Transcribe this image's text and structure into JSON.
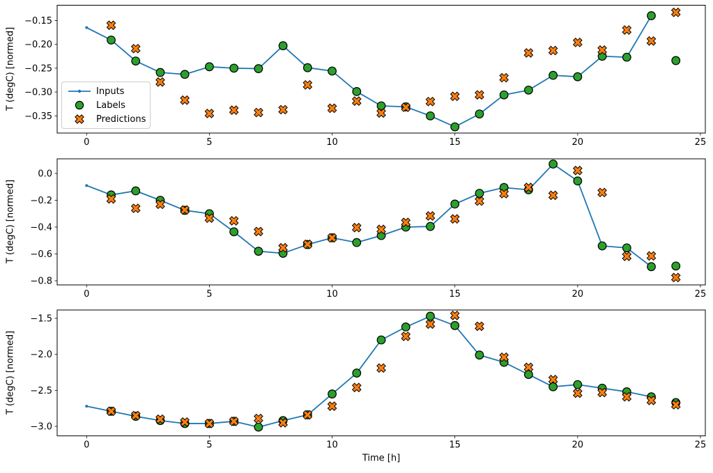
{
  "figure": {
    "xlabel": "Time [h]",
    "ylabel": "T (degC) [normed]",
    "legend": {
      "position": "center-left-of-first-subplot"
    },
    "colors": {
      "inputs": "#1f77b4",
      "labels": "#2ca02c",
      "predictions": "#ff7f0e",
      "marker_edge": "#000000"
    }
  },
  "chart_data": [
    {
      "type": "line",
      "subplot": 1,
      "ylabel": "T (degC) [normed]",
      "xlabel": "",
      "xlim": [
        -1.2,
        25.2
      ],
      "ylim": [
        -0.386,
        -0.118
      ],
      "xticks": [
        0,
        5,
        10,
        15,
        20,
        25
      ],
      "xtick_labels": [
        "0",
        "5",
        "10",
        "15",
        "20",
        "25"
      ],
      "yticks": [
        -0.15,
        -0.2,
        -0.25,
        -0.3,
        -0.35
      ],
      "ytick_labels": [
        "−0.15",
        "−0.20",
        "−0.25",
        "−0.30",
        "−0.35"
      ],
      "grid": false,
      "show_legend": true,
      "series": [
        {
          "name": "Inputs",
          "kind": "line",
          "marker": "dot",
          "color": "#1f77b4",
          "x": [
            0,
            1,
            2,
            3,
            4,
            5,
            6,
            7,
            8,
            9,
            10,
            11,
            12,
            13,
            14,
            15,
            16,
            17,
            18,
            19,
            20,
            21,
            22,
            23
          ],
          "y": [
            -0.165,
            -0.191,
            -0.235,
            -0.259,
            -0.263,
            -0.247,
            -0.25,
            -0.251,
            -0.203,
            -0.249,
            -0.256,
            -0.299,
            -0.329,
            -0.331,
            -0.35,
            -0.373,
            -0.346,
            -0.306,
            -0.296,
            -0.265,
            -0.268,
            -0.225,
            -0.227,
            -0.14
          ]
        },
        {
          "name": "Labels",
          "kind": "scatter",
          "marker": "circle",
          "color": "#2ca02c",
          "edge": "#000000",
          "x": [
            1,
            2,
            3,
            4,
            5,
            6,
            7,
            8,
            9,
            10,
            11,
            12,
            13,
            14,
            15,
            16,
            17,
            18,
            19,
            20,
            21,
            22,
            23,
            24
          ],
          "y": [
            -0.191,
            -0.235,
            -0.259,
            -0.263,
            -0.247,
            -0.25,
            -0.251,
            -0.203,
            -0.249,
            -0.256,
            -0.299,
            -0.329,
            -0.331,
            -0.35,
            -0.373,
            -0.346,
            -0.306,
            -0.296,
            -0.265,
            -0.268,
            -0.225,
            -0.227,
            -0.14,
            -0.234
          ]
        },
        {
          "name": "Predictions",
          "kind": "scatter",
          "marker": "X",
          "color": "#ff7f0e",
          "edge": "#000000",
          "x": [
            1,
            2,
            3,
            4,
            5,
            6,
            7,
            8,
            9,
            10,
            11,
            12,
            13,
            14,
            15,
            16,
            17,
            18,
            19,
            20,
            21,
            22,
            23,
            24
          ],
          "y": [
            -0.16,
            -0.209,
            -0.279,
            -0.317,
            -0.345,
            -0.338,
            -0.343,
            -0.337,
            -0.285,
            -0.334,
            -0.319,
            -0.344,
            -0.332,
            -0.32,
            -0.309,
            -0.306,
            -0.27,
            -0.218,
            -0.213,
            -0.196,
            -0.212,
            -0.17,
            -0.193,
            -0.133
          ]
        }
      ]
    },
    {
      "type": "line",
      "subplot": 2,
      "ylabel": "T (degC) [normed]",
      "xlabel": "",
      "xlim": [
        -1.2,
        25.2
      ],
      "ylim": [
        -0.831,
        0.109
      ],
      "xticks": [
        0,
        5,
        10,
        15,
        20,
        25
      ],
      "xtick_labels": [
        "0",
        "5",
        "10",
        "15",
        "20",
        "25"
      ],
      "yticks": [
        0.0,
        -0.2,
        -0.4,
        -0.6,
        -0.8
      ],
      "ytick_labels": [
        "0.0",
        "−0.2",
        "−0.4",
        "−0.6",
        "−0.8"
      ],
      "grid": false,
      "show_legend": false,
      "series": [
        {
          "name": "Inputs",
          "kind": "line",
          "marker": "dot",
          "color": "#1f77b4",
          "x": [
            0,
            1,
            2,
            3,
            4,
            5,
            6,
            7,
            8,
            9,
            10,
            11,
            12,
            13,
            14,
            15,
            16,
            17,
            18,
            19,
            20,
            21,
            22,
            23
          ],
          "y": [
            -0.09,
            -0.16,
            -0.13,
            -0.2,
            -0.275,
            -0.3,
            -0.435,
            -0.58,
            -0.595,
            -0.53,
            -0.48,
            -0.515,
            -0.463,
            -0.4,
            -0.395,
            -0.228,
            -0.148,
            -0.105,
            -0.122,
            0.07,
            -0.056,
            -0.54,
            -0.555,
            -0.695
          ]
        },
        {
          "name": "Labels",
          "kind": "scatter",
          "marker": "circle",
          "color": "#2ca02c",
          "edge": "#000000",
          "x": [
            1,
            2,
            3,
            4,
            5,
            6,
            7,
            8,
            9,
            10,
            11,
            12,
            13,
            14,
            15,
            16,
            17,
            18,
            19,
            20,
            21,
            22,
            23,
            24
          ],
          "y": [
            -0.16,
            -0.13,
            -0.2,
            -0.275,
            -0.3,
            -0.435,
            -0.58,
            -0.595,
            -0.53,
            -0.48,
            -0.515,
            -0.463,
            -0.4,
            -0.395,
            -0.228,
            -0.148,
            -0.105,
            -0.122,
            0.07,
            -0.056,
            -0.54,
            -0.555,
            -0.695,
            -0.69
          ]
        },
        {
          "name": "Predictions",
          "kind": "scatter",
          "marker": "X",
          "color": "#ff7f0e",
          "edge": "#000000",
          "x": [
            1,
            2,
            3,
            4,
            5,
            6,
            7,
            8,
            9,
            10,
            11,
            12,
            13,
            14,
            15,
            16,
            17,
            18,
            19,
            20,
            21,
            22,
            23,
            24
          ],
          "y": [
            -0.19,
            -0.26,
            -0.23,
            -0.272,
            -0.333,
            -0.353,
            -0.433,
            -0.554,
            -0.528,
            -0.48,
            -0.404,
            -0.417,
            -0.365,
            -0.317,
            -0.339,
            -0.206,
            -0.151,
            -0.104,
            -0.163,
            0.022,
            -0.142,
            -0.618,
            -0.615,
            -0.776
          ]
        }
      ]
    },
    {
      "type": "line",
      "subplot": 3,
      "ylabel": "T (degC) [normed]",
      "xlabel": "Time [h]",
      "xlim": [
        -1.2,
        25.2
      ],
      "ylim": [
        -3.132,
        -1.384
      ],
      "xticks": [
        0,
        5,
        10,
        15,
        20,
        25
      ],
      "xtick_labels": [
        "0",
        "5",
        "10",
        "15",
        "20",
        "25"
      ],
      "yticks": [
        -1.5,
        -2.0,
        -2.5,
        -3.0
      ],
      "ytick_labels": [
        "−1.5",
        "−2.0",
        "−2.5",
        "−3.0"
      ],
      "grid": false,
      "show_legend": false,
      "series": [
        {
          "name": "Inputs",
          "kind": "line",
          "marker": "dot",
          "color": "#1f77b4",
          "x": [
            0,
            1,
            2,
            3,
            4,
            5,
            6,
            7,
            8,
            9,
            10,
            11,
            12,
            13,
            14,
            15,
            16,
            17,
            18,
            19,
            20,
            21,
            22,
            23
          ],
          "y": [
            -2.72,
            -2.79,
            -2.86,
            -2.92,
            -2.96,
            -2.96,
            -2.93,
            -3.01,
            -2.92,
            -2.84,
            -2.55,
            -2.26,
            -1.8,
            -1.62,
            -1.47,
            -1.6,
            -2.01,
            -2.11,
            -2.28,
            -2.45,
            -2.42,
            -2.47,
            -2.52,
            -2.59
          ]
        },
        {
          "name": "Labels",
          "kind": "scatter",
          "marker": "circle",
          "color": "#2ca02c",
          "edge": "#000000",
          "x": [
            1,
            2,
            3,
            4,
            5,
            6,
            7,
            8,
            9,
            10,
            11,
            12,
            13,
            14,
            15,
            16,
            17,
            18,
            19,
            20,
            21,
            22,
            23,
            24
          ],
          "y": [
            -2.79,
            -2.86,
            -2.92,
            -2.96,
            -2.96,
            -2.93,
            -3.01,
            -2.92,
            -2.84,
            -2.55,
            -2.26,
            -1.8,
            -1.62,
            -1.47,
            -1.6,
            -2.01,
            -2.11,
            -2.28,
            -2.45,
            -2.42,
            -2.47,
            -2.52,
            -2.59,
            -2.67
          ]
        },
        {
          "name": "Predictions",
          "kind": "scatter",
          "marker": "X",
          "color": "#ff7f0e",
          "edge": "#000000",
          "x": [
            1,
            2,
            3,
            4,
            5,
            6,
            7,
            8,
            9,
            10,
            11,
            12,
            13,
            14,
            15,
            16,
            17,
            18,
            19,
            20,
            21,
            22,
            23,
            24
          ],
          "y": [
            -2.79,
            -2.85,
            -2.9,
            -2.94,
            -2.96,
            -2.93,
            -2.89,
            -2.95,
            -2.84,
            -2.72,
            -2.46,
            -2.19,
            -1.75,
            -1.58,
            -1.46,
            -1.61,
            -2.04,
            -2.18,
            -2.35,
            -2.54,
            -2.53,
            -2.59,
            -2.64,
            -2.7
          ]
        }
      ]
    }
  ]
}
